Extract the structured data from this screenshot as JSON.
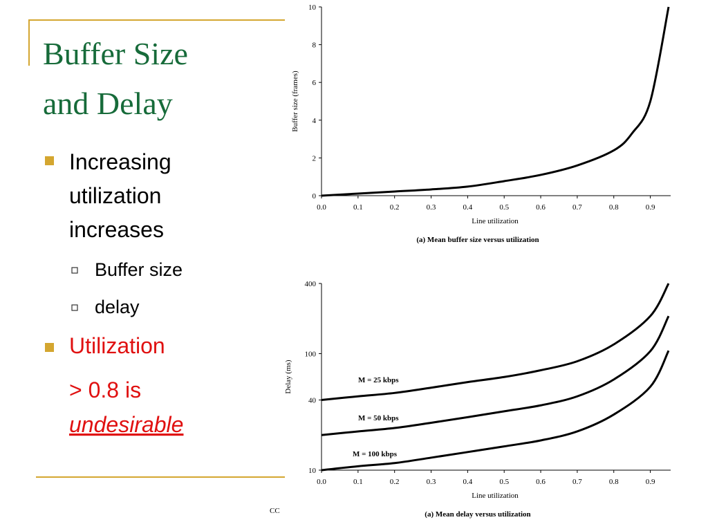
{
  "slide": {
    "title": [
      "Buffer Size",
      "and Delay"
    ],
    "bullets": [
      {
        "lines": [
          "Increasing",
          "utilization",
          "increases"
        ],
        "sub": [
          "Buffer size",
          "delay"
        ]
      },
      {
        "lines": [
          "Utilization",
          "> 0.8 is"
        ],
        "emphasis": "undesirable"
      }
    ],
    "footer": "CC"
  },
  "chart_data": [
    {
      "type": "line",
      "x": [
        0,
        0.1,
        0.2,
        0.3,
        0.4,
        0.5,
        0.6,
        0.7,
        0.8,
        0.85,
        0.9,
        0.95
      ],
      "values": [
        0,
        0.11,
        0.22,
        0.33,
        0.48,
        0.77,
        1.1,
        1.6,
        2.4,
        3.3,
        5.0,
        10
      ],
      "color": "#000000",
      "xlim": [
        0,
        0.95
      ],
      "ylim": [
        0,
        10
      ],
      "xticks": [
        {
          "value": 0,
          "label": "0.0"
        },
        0.1,
        0.2,
        0.3,
        0.4,
        0.5,
        0.6,
        0.7,
        0.8,
        0.9
      ],
      "yticks": [
        0,
        2,
        4,
        6,
        8,
        10
      ],
      "x_label": "Line utilization",
      "y_label": "Buffer size (frames)",
      "caption": "(a) Mean buffer size versus utilization"
    },
    {
      "type": "line",
      "log_scale": true,
      "x": [
        0,
        0.1,
        0.2,
        0.3,
        0.4,
        0.5,
        0.6,
        0.7,
        0.8,
        0.9,
        0.95
      ],
      "series": [
        {
          "name": "M = 25 kbps",
          "color": "#000000",
          "values": [
            40,
            43,
            46,
            51,
            57,
            63,
            72,
            86,
            120,
            210,
            400
          ]
        },
        {
          "name": "M = 50 kbps",
          "color": "#000000",
          "values": [
            20,
            21.5,
            23,
            25.5,
            28.5,
            32,
            36,
            43,
            60,
            105,
            210
          ]
        },
        {
          "name": "M = 100 kbps",
          "color": "#000000",
          "values": [
            10,
            10.8,
            11.5,
            12.8,
            14.3,
            16,
            18,
            21.5,
            30,
            52,
            106
          ]
        }
      ],
      "xlim": [
        0,
        0.95
      ],
      "ylim": [
        10,
        400
      ],
      "xticks": [
        {
          "value": 0,
          "label": "0.0"
        },
        0.1,
        0.2,
        0.3,
        0.4,
        0.5,
        0.6,
        0.7,
        0.8,
        0.9
      ],
      "yticks": [
        10,
        40,
        100,
        400
      ],
      "x_label": "Line utilization",
      "y_label": "Delay (ms)",
      "caption": "(a) Mean delay versus utilization"
    }
  ]
}
